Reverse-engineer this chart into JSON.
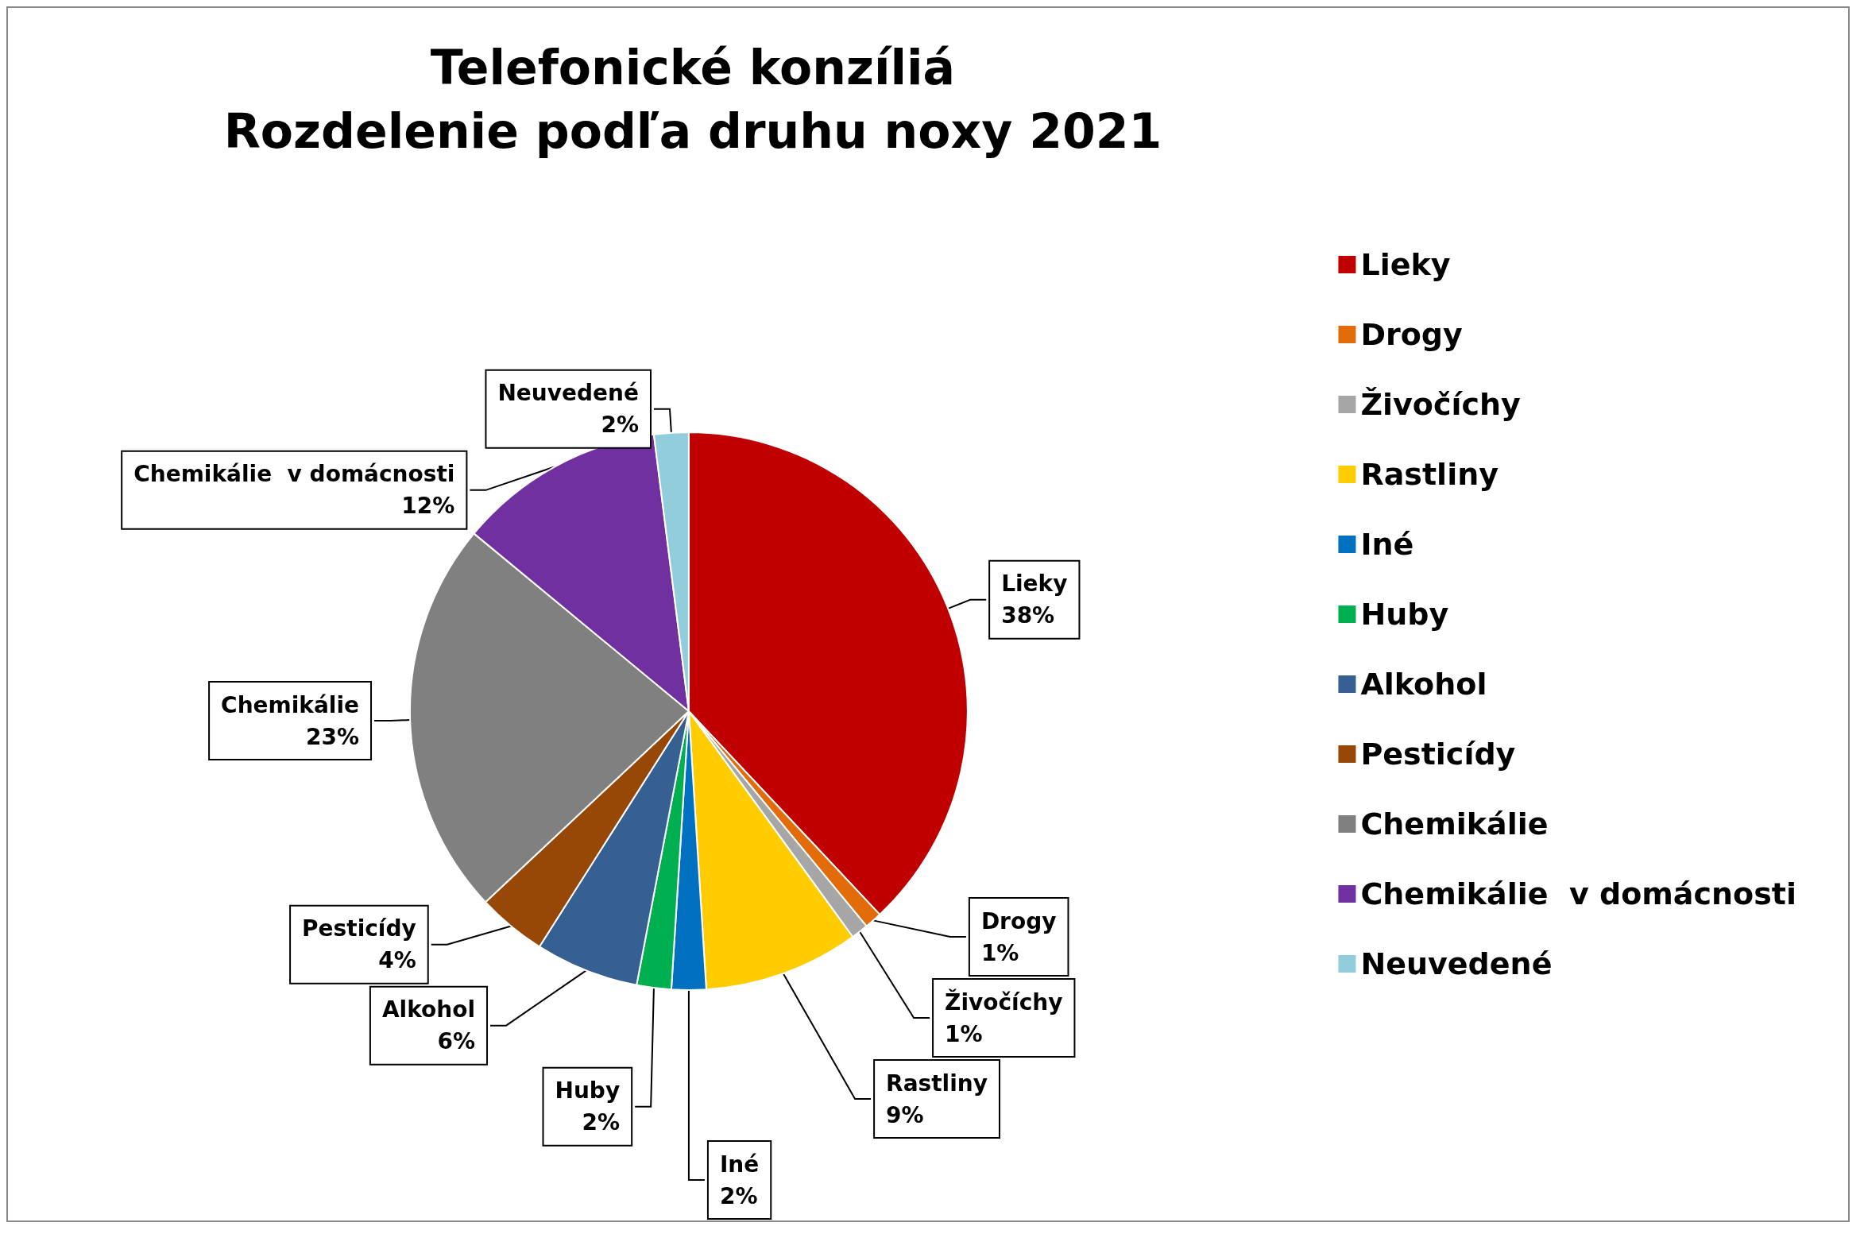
{
  "chart_data": {
    "type": "pie",
    "title": "Telefonické konzíliá",
    "subtitle": "Rozdelenie podľa druhu noxy 2021",
    "categories": [
      "Lieky",
      "Drogy",
      "Živočíchy",
      "Rastliny",
      "Iné",
      "Huby",
      "Alkohol",
      "Pesticídy",
      "Chemikálie",
      "Chemikálie  v domácnosti",
      "Neuvedené"
    ],
    "values": [
      38,
      1,
      1,
      9,
      2,
      2,
      6,
      4,
      23,
      12,
      2
    ],
    "colors": [
      "#c00000",
      "#e26b0a",
      "#a6a6a6",
      "#ffcc00",
      "#0070c0",
      "#00b050",
      "#376092",
      "#974706",
      "#808080",
      "#7030a0",
      "#92cddc"
    ],
    "value_labels": [
      "38%",
      "1%",
      "1%",
      "9%",
      "2%",
      "2%",
      "6%",
      "4%",
      "23%",
      "12%",
      "2%"
    ],
    "legend": "right"
  }
}
